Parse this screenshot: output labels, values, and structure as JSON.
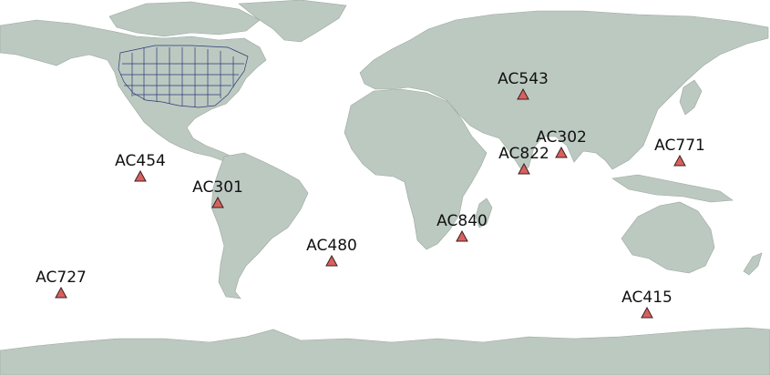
{
  "map": {
    "colors": {
      "land": "#bcc9c1",
      "ocean": "#ffffff",
      "state_borders": "#2c3a78",
      "marker_fill": "#d9605e",
      "marker_stroke": "#3b1f1f",
      "label": "#111111"
    },
    "marker_shape": "triangle",
    "stations": [
      {
        "id": "AC543",
        "label": "AC543"
      },
      {
        "id": "AC302",
        "label": "AC302"
      },
      {
        "id": "AC822",
        "label": "AC822"
      },
      {
        "id": "AC771",
        "label": "AC771"
      },
      {
        "id": "AC454",
        "label": "AC454"
      },
      {
        "id": "AC301",
        "label": "AC301"
      },
      {
        "id": "AC840",
        "label": "AC840"
      },
      {
        "id": "AC480",
        "label": "AC480"
      },
      {
        "id": "AC727",
        "label": "AC727"
      },
      {
        "id": "AC415",
        "label": "AC415"
      }
    ]
  }
}
